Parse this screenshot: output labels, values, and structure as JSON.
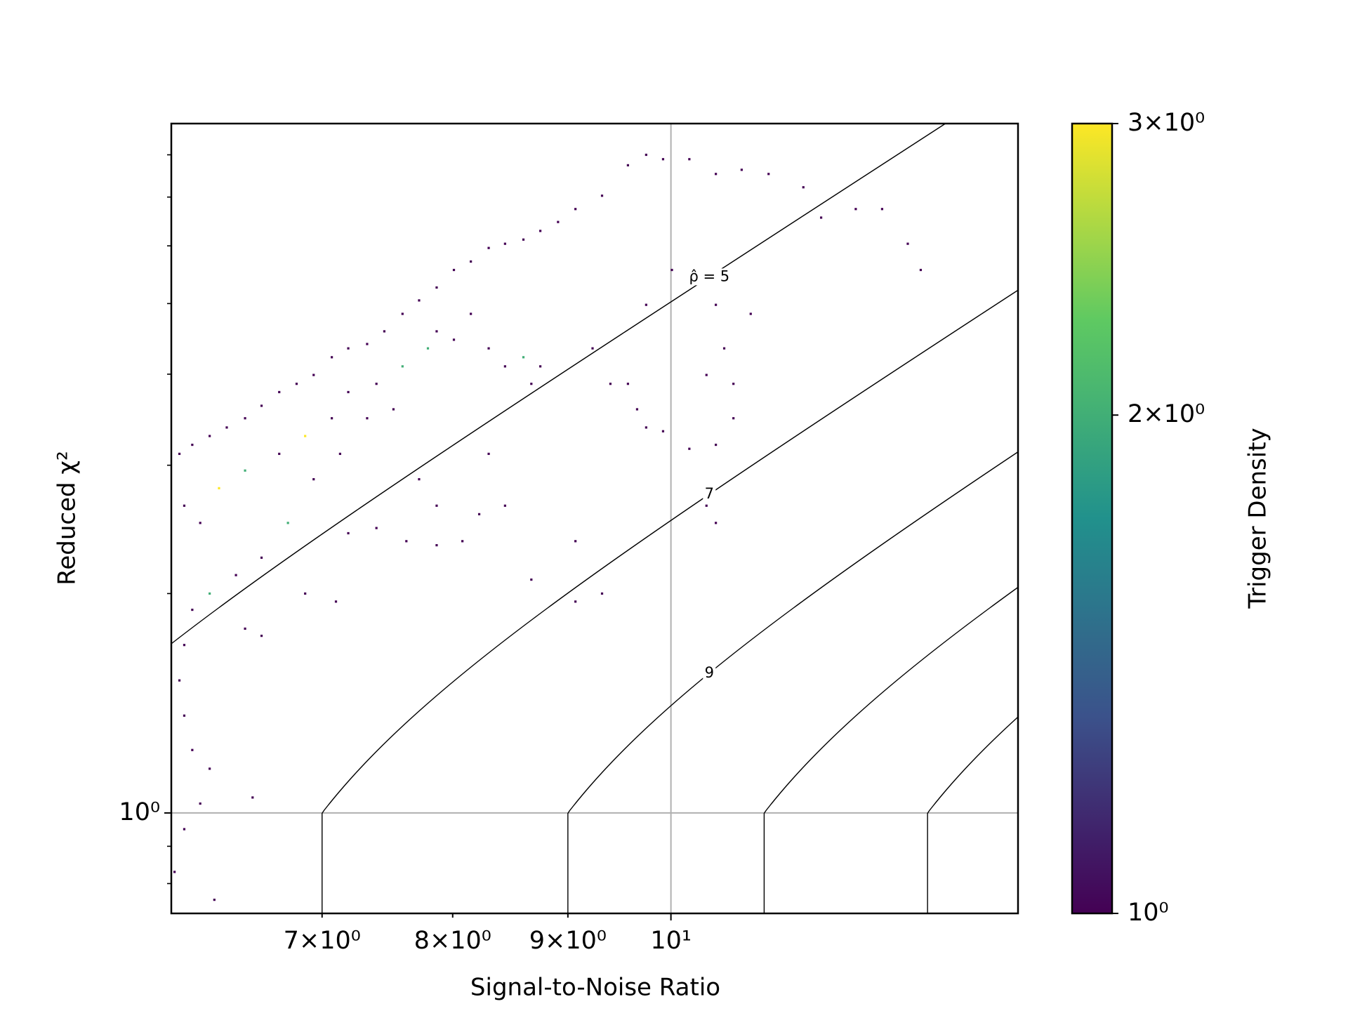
{
  "chart_data": {
    "type": "scatter",
    "xlabel": "Signal-to-Noise Ratio",
    "ylabel": "Reduced χ²",
    "xscale": "log",
    "yscale": "log",
    "grid": true,
    "xlim": [
      6.0,
      14.26
    ],
    "ylim": [
      0.728,
      8.83
    ],
    "xticks": [
      {
        "value": 7,
        "label": "7×10⁰"
      },
      {
        "value": 8,
        "label": "8×10⁰"
      },
      {
        "value": 9,
        "label": "9×10⁰"
      },
      {
        "value": 10,
        "label": "10¹"
      }
    ],
    "yticks": [
      {
        "value": 1,
        "label": "10⁰"
      }
    ],
    "yminor_ticks": [
      0.8,
      0.9,
      2,
      3,
      4,
      5,
      6,
      7,
      8
    ],
    "contours": {
      "levels": [
        5,
        7,
        9,
        11,
        13
      ],
      "labels": [
        {
          "value": 5,
          "label": "ρ̂ = 5"
        },
        7,
        9
      ],
      "color": "#000000"
    },
    "colorbar": {
      "label": "Trigger Density",
      "lim": [
        1,
        3
      ],
      "log": true,
      "colormap": "viridis",
      "ticks": [
        {
          "value": 1,
          "label": "10⁰"
        },
        {
          "value": 2,
          "label": "2×10⁰"
        },
        {
          "value": 3,
          "label": "3×10⁰"
        }
      ]
    },
    "x": [
      6.05,
      6.13,
      6.24,
      6.35,
      6.47,
      6.58,
      6.7,
      6.82,
      6.94,
      7.07,
      7.19,
      7.33,
      7.46,
      7.6,
      7.73,
      7.87,
      8.01,
      8.15,
      8.3,
      8.44,
      8.6,
      8.75,
      8.91,
      9.07,
      9.32,
      9.57,
      9.75,
      9.92,
      10.19,
      10.47,
      10.75,
      11.05,
      11.45,
      11.66,
      12.08,
      12.41,
      12.74,
      12.91,
      6.08,
      6.18,
      6.3,
      6.47,
      6.7,
      6.88,
      7.07,
      7.19,
      7.4,
      7.6,
      7.8,
      8.01,
      8.3,
      8.6,
      8.75,
      8.67,
      8.44,
      8.15,
      7.87,
      7.53,
      7.33,
      7.13,
      6.94,
      6.76,
      6.58,
      6.41,
      6.24,
      6.13,
      6.08,
      6.05,
      6.08,
      6.13,
      6.24,
      6.18,
      6.08,
      6.02,
      6.27,
      6.52,
      7.73,
      7.87,
      8.22,
      8.44,
      8.3,
      7.63,
      7.87,
      8.08,
      8.67,
      9.07,
      9.23,
      9.4,
      9.57,
      9.66,
      9.75,
      9.92,
      10.19,
      10.47,
      10.66,
      10.66,
      10.37,
      10.56,
      10.85,
      10.47,
      9.75,
      10.01,
      10.28,
      10.37,
      10.47,
      9.07,
      9.32,
      7.1,
      6.88,
      6.47,
      6.58,
      7.4,
      7.19
    ],
    "y": [
      3.11,
      3.2,
      3.29,
      3.38,
      3.48,
      3.62,
      3.78,
      3.88,
      3.99,
      4.22,
      4.34,
      4.4,
      4.58,
      4.84,
      5.05,
      5.26,
      5.56,
      5.71,
      5.96,
      6.04,
      6.12,
      6.29,
      6.47,
      6.74,
      7.03,
      7.74,
      8.0,
      7.89,
      7.89,
      7.53,
      7.63,
      7.53,
      7.22,
      6.56,
      6.74,
      6.74,
      6.04,
      5.56,
      2.64,
      2.5,
      2.79,
      2.95,
      3.11,
      3.29,
      3.48,
      3.78,
      3.88,
      4.1,
      4.34,
      4.46,
      4.34,
      4.22,
      4.1,
      3.88,
      4.1,
      4.84,
      4.58,
      3.58,
      3.48,
      3.11,
      2.87,
      2.5,
      2.24,
      2.12,
      2.0,
      1.9,
      1.7,
      1.52,
      1.36,
      1.22,
      1.15,
      1.03,
      0.95,
      0.83,
      0.76,
      1.05,
      2.87,
      2.64,
      2.57,
      2.64,
      3.11,
      2.36,
      2.33,
      2.36,
      2.09,
      2.36,
      4.34,
      3.88,
      3.88,
      3.58,
      3.38,
      3.34,
      3.16,
      3.2,
      3.48,
      3.88,
      3.99,
      4.34,
      4.84,
      4.98,
      4.98,
      5.56,
      5.41,
      2.64,
      2.5,
      1.95,
      2.0,
      1.95,
      2.0,
      1.79,
      1.75,
      2.46,
      2.42
    ],
    "density": [
      1,
      1,
      1,
      1,
      1,
      1,
      1,
      1,
      1,
      1,
      1,
      1,
      1,
      1,
      1,
      1,
      1,
      1,
      1,
      1,
      1,
      1,
      1,
      1,
      1,
      1,
      1,
      1,
      1,
      1,
      1,
      1,
      1,
      1,
      1,
      1,
      1,
      1,
      1,
      1,
      3,
      2,
      1,
      3,
      1,
      1,
      1,
      2,
      2,
      1,
      1,
      2,
      1,
      1,
      1,
      1,
      1,
      1,
      1,
      1,
      1,
      2,
      1,
      1,
      2,
      1,
      1,
      1,
      1,
      1,
      1,
      1,
      1,
      1,
      1,
      1,
      1,
      1,
      1,
      1,
      1,
      1,
      1,
      1,
      1,
      1,
      1,
      1,
      1,
      1,
      1,
      1,
      1,
      1,
      1,
      1,
      1,
      1,
      1,
      1,
      1,
      1,
      1,
      1,
      1,
      1,
      1,
      1,
      1,
      1,
      1,
      1,
      1
    ]
  }
}
